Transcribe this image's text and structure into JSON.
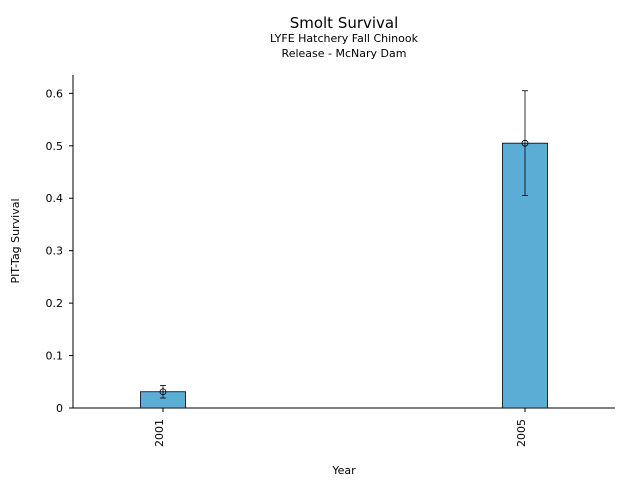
{
  "chart_data": {
    "type": "bar",
    "title": "Smolt Survival",
    "subtitle_lines": [
      "LYFE Hatchery Fall Chinook",
      "Release - McNary Dam"
    ],
    "xlabel": "Year",
    "ylabel": "PIT-Tag Survival",
    "categories": [
      "2001",
      "2005"
    ],
    "values": [
      0.031,
      0.505
    ],
    "error_low": [
      0.019,
      0.405
    ],
    "error_high": [
      0.043,
      0.605
    ],
    "ylim": [
      0,
      0.635
    ],
    "yticks": [
      0,
      0.1,
      0.2,
      0.3,
      0.4,
      0.5,
      0.6
    ],
    "ytick_labels": [
      "0",
      "0.1",
      "0.2",
      "0.3",
      "0.4",
      "0.5",
      "0.6"
    ],
    "grid": false,
    "colors": {
      "bar": "#5badd6",
      "edge": "#000000"
    }
  }
}
